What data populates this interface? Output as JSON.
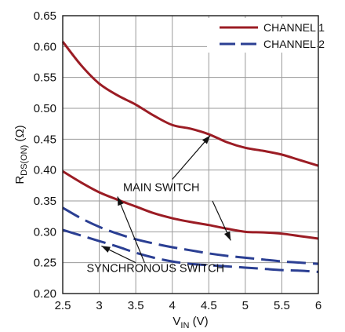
{
  "chart_data": {
    "type": "line",
    "title": "",
    "xlabel": {
      "main": "V",
      "sub": "IN",
      "unit": " (V)"
    },
    "ylabel": {
      "main": "R",
      "sub": "DS(ON)",
      "unit": " (Ω)"
    },
    "xlim": [
      2.5,
      6
    ],
    "ylim": [
      0.2,
      0.65
    ],
    "x_ticks": [
      "2.5",
      "3",
      "3.5",
      "4",
      "4.5",
      "5",
      "5.5",
      "6"
    ],
    "y_ticks": [
      "0.20",
      "0.25",
      "0.30",
      "0.35",
      "0.40",
      "0.45",
      "0.50",
      "0.55",
      "0.60",
      "0.65"
    ],
    "grid": true,
    "legend_position": "top-right",
    "series": [
      {
        "name": "CHANNEL 1",
        "switch": "MAIN SWITCH",
        "color": "#9b1c24",
        "dash": "solid",
        "x": [
          2.5,
          2.75,
          3.0,
          3.25,
          3.5,
          3.75,
          4.0,
          4.25,
          4.5,
          4.75,
          5.0,
          5.25,
          5.5,
          5.75,
          6.0
        ],
        "y": [
          0.608,
          0.57,
          0.54,
          0.521,
          0.506,
          0.488,
          0.473,
          0.467,
          0.458,
          0.445,
          0.436,
          0.431,
          0.425,
          0.416,
          0.407
        ]
      },
      {
        "name": "CHANNEL 1",
        "switch": "SYNCHRONOUS SWITCH",
        "color": "#9b1c24",
        "dash": "solid",
        "x": [
          2.5,
          2.75,
          3.0,
          3.25,
          3.5,
          3.75,
          4.0,
          4.25,
          4.5,
          4.75,
          5.0,
          5.25,
          5.5,
          5.75,
          6.0
        ],
        "y": [
          0.398,
          0.38,
          0.364,
          0.352,
          0.341,
          0.33,
          0.322,
          0.316,
          0.311,
          0.305,
          0.3,
          0.299,
          0.297,
          0.293,
          0.289
        ]
      },
      {
        "name": "CHANNEL 2",
        "switch": "MAIN SWITCH",
        "color": "#2b3f93",
        "dash": "dashed",
        "x": [
          2.5,
          2.75,
          3.0,
          3.25,
          3.5,
          3.75,
          4.0,
          4.25,
          4.5,
          4.75,
          5.0,
          5.25,
          5.5,
          5.75,
          6.0
        ],
        "y": [
          0.339,
          0.322,
          0.308,
          0.297,
          0.288,
          0.281,
          0.275,
          0.27,
          0.265,
          0.261,
          0.258,
          0.255,
          0.252,
          0.25,
          0.248
        ]
      },
      {
        "name": "CHANNEL 2",
        "switch": "SYNCHRONOUS SWITCH",
        "color": "#2b3f93",
        "dash": "dashed",
        "x": [
          2.5,
          2.75,
          3.0,
          3.25,
          3.5,
          3.75,
          4.0,
          4.25,
          4.5,
          4.75,
          5.0,
          5.25,
          5.5,
          5.75,
          6.0
        ],
        "y": [
          0.303,
          0.294,
          0.285,
          0.276,
          0.266,
          0.258,
          0.252,
          0.248,
          0.246,
          0.244,
          0.242,
          0.24,
          0.238,
          0.237,
          0.235
        ]
      }
    ],
    "legend": [
      {
        "label": "CHANNEL 1",
        "color": "#9b1c24",
        "dash": "solid"
      },
      {
        "label": "CHANNEL 2",
        "color": "#2b3f93",
        "dash": "dashed"
      }
    ],
    "annotations": [
      {
        "text": "MAIN SWITCH",
        "text_at": [
          3.85,
          0.366
        ],
        "arrows": [
          {
            "from": [
              4.0,
              0.385
            ],
            "to": [
              4.52,
              0.456
            ]
          },
          {
            "from": [
              4.55,
              0.35
            ],
            "to": [
              4.8,
              0.286
            ]
          }
        ]
      },
      {
        "text": "SYNCHRONOUS SWITCH",
        "text_at": [
          3.77,
          0.235
        ],
        "arrows": [
          {
            "from": [
              3.62,
              0.25
            ],
            "to": [
              3.25,
              0.357
            ]
          },
          {
            "from": [
              3.5,
              0.25
            ],
            "to": [
              3.03,
              0.277
            ]
          }
        ]
      }
    ]
  }
}
